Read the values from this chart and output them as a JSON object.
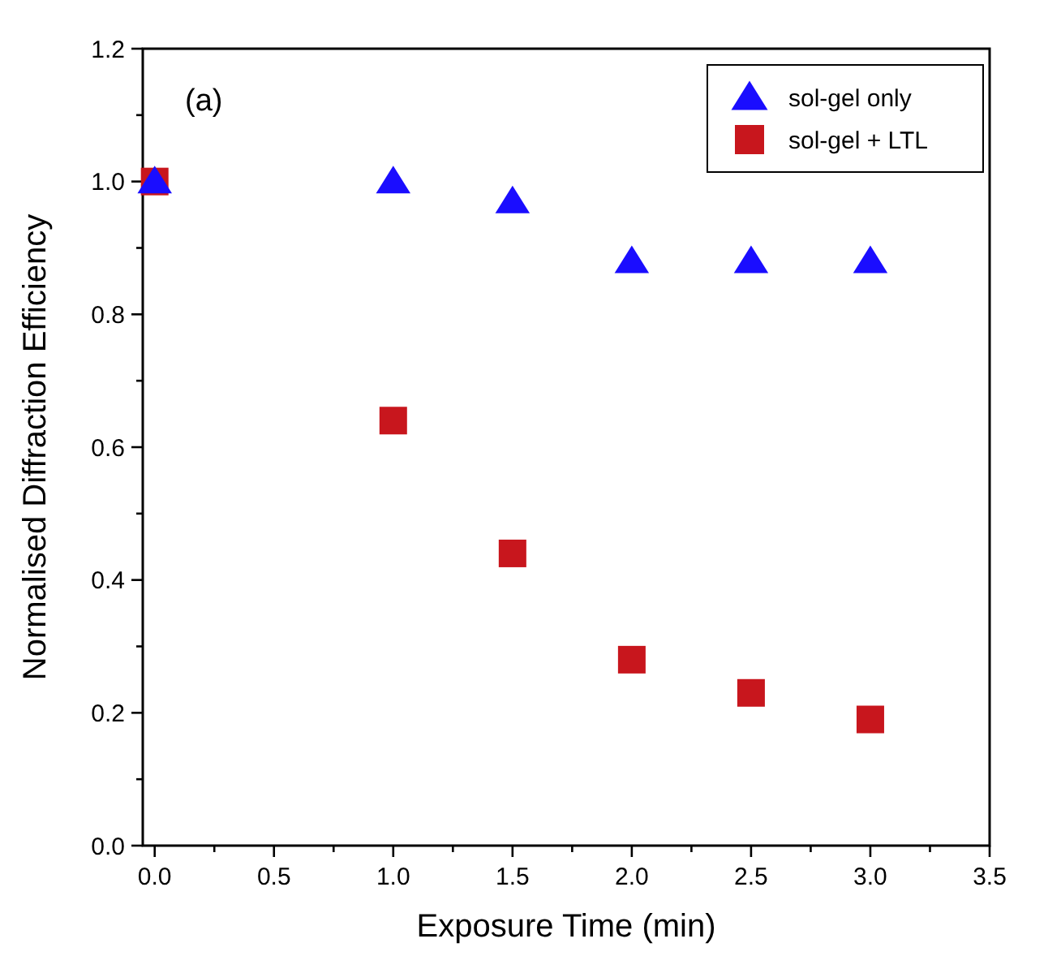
{
  "chart_data": {
    "type": "scatter",
    "xlabel": "Exposure Time (min)",
    "ylabel": "Normalised Diffraction Efficiency",
    "annotations": [
      "(a)"
    ],
    "x": [
      0,
      1,
      1.5,
      2,
      2.5,
      3
    ],
    "series": [
      {
        "name": "sol-gel only",
        "color": "#1a0dff",
        "marker": "triangle",
        "values": [
          1.0,
          1.0,
          0.97,
          0.88,
          0.88,
          0.88
        ]
      },
      {
        "name": "sol-gel + LTL",
        "color": "#c8161d",
        "marker": "square",
        "values": [
          1.0,
          0.64,
          0.44,
          0.28,
          0.23,
          0.19
        ]
      }
    ],
    "xlim": [
      -0.05,
      3.5
    ],
    "ylim": [
      0,
      1.2
    ],
    "xticks": [
      {
        "value": 0,
        "label": "0.0"
      },
      {
        "value": 0.25,
        "label": null
      },
      {
        "value": 0.5,
        "label": "0.5"
      },
      {
        "value": 0.75,
        "label": null
      },
      {
        "value": 1,
        "label": "1.0"
      },
      {
        "value": 1.25,
        "label": null
      },
      {
        "value": 1.5,
        "label": "1.5"
      },
      {
        "value": 1.75,
        "label": null
      },
      {
        "value": 2,
        "label": "2.0"
      },
      {
        "value": 2.25,
        "label": null
      },
      {
        "value": 2.5,
        "label": "2.5"
      },
      {
        "value": 2.75,
        "label": null
      },
      {
        "value": 3,
        "label": "3.0"
      },
      {
        "value": 3.25,
        "label": null
      },
      {
        "value": 3.5,
        "label": "3.5"
      }
    ],
    "yticks": [
      {
        "value": 0,
        "label": "0.0"
      },
      {
        "value": 0.1,
        "label": null
      },
      {
        "value": 0.2,
        "label": "0.2"
      },
      {
        "value": 0.3,
        "label": null
      },
      {
        "value": 0.4,
        "label": "0.4"
      },
      {
        "value": 0.5,
        "label": null
      },
      {
        "value": 0.6,
        "label": "0.6"
      },
      {
        "value": 0.7,
        "label": null
      },
      {
        "value": 0.8,
        "label": "0.8"
      },
      {
        "value": 0.9,
        "label": null
      },
      {
        "value": 1,
        "label": "1.0"
      },
      {
        "value": 1.1,
        "label": null
      },
      {
        "value": 1.2,
        "label": "1.2"
      }
    ],
    "grid": false,
    "legend": "top right"
  }
}
